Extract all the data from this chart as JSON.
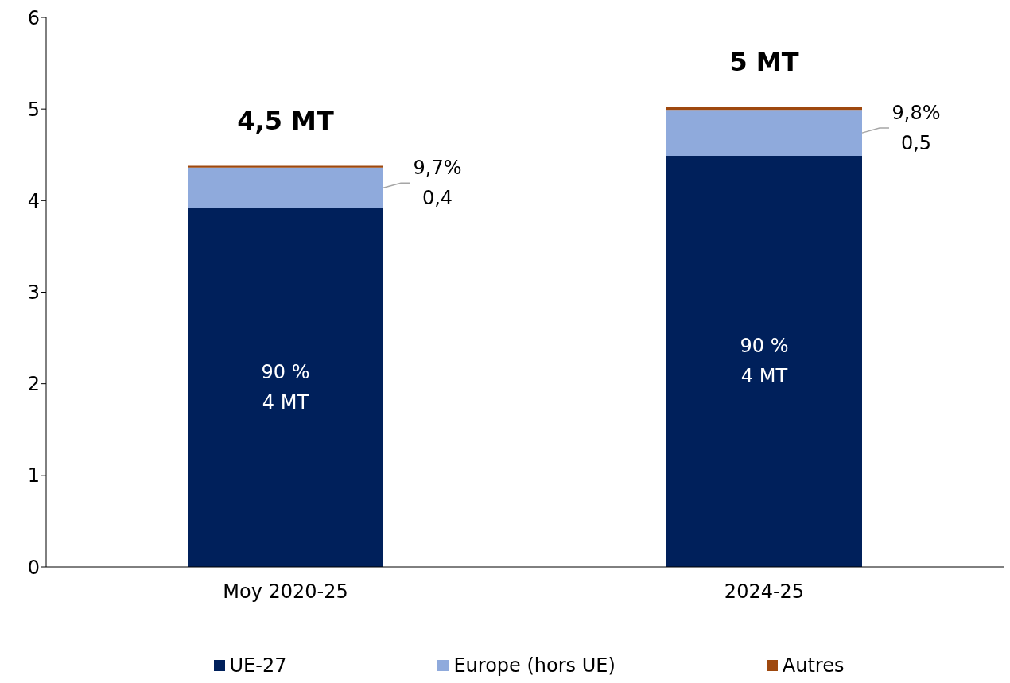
{
  "chart_data": {
    "type": "bar",
    "stacked": true,
    "categories": [
      "Moy 2020-25",
      "2024-25"
    ],
    "series": [
      {
        "name": "UE-27",
        "color": "#00205b",
        "values": [
          3.92,
          4.49
        ],
        "value_labels": [
          "90 %\n4 MT",
          "90 %\n4 MT"
        ]
      },
      {
        "name": "Europe (hors UE)",
        "color": "#8faadc",
        "values": [
          0.44,
          0.5
        ],
        "value_labels": [
          "9,7%\n0,4",
          "9,8%\n0,5"
        ]
      },
      {
        "name": "Autres",
        "color": "#9e480e",
        "values": [
          0.02,
          0.03
        ]
      }
    ],
    "totals": [
      "4,5 MT",
      "5 MT"
    ],
    "ylim": [
      0,
      6
    ],
    "yticks": [
      0,
      1,
      2,
      3,
      4,
      5,
      6
    ],
    "grid": false,
    "legend": "bottom"
  }
}
